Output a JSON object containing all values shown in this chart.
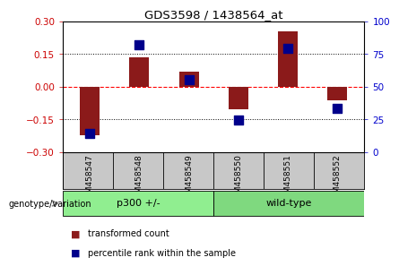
{
  "title": "GDS3598 / 1438564_at",
  "samples": [
    "GSM458547",
    "GSM458548",
    "GSM458549",
    "GSM458550",
    "GSM458551",
    "GSM458552"
  ],
  "transformed_count": [
    -0.225,
    0.135,
    0.07,
    -0.105,
    0.255,
    -0.065
  ],
  "percentile_rank": [
    14,
    82,
    55,
    24,
    79,
    33
  ],
  "groups": [
    {
      "label": "p300 +/-",
      "color": "#90EE90",
      "start": 0,
      "end": 2
    },
    {
      "label": "wild-type",
      "color": "#7FD97F",
      "start": 3,
      "end": 5
    }
  ],
  "bar_color": "#8B1A1A",
  "dot_color": "#00008B",
  "ylim_left": [
    -0.3,
    0.3
  ],
  "ylim_right": [
    0,
    100
  ],
  "yticks_left": [
    -0.3,
    -0.15,
    0,
    0.15,
    0.3
  ],
  "yticks_right": [
    0,
    25,
    50,
    75,
    100
  ],
  "dotted_lines": [
    -0.15,
    0.15
  ],
  "background_color": "#ffffff",
  "plot_bg": "#ffffff",
  "tick_label_color_left": "#CC0000",
  "tick_label_color_right": "#0000CC",
  "group_label": "genotype/variation",
  "label_bg": "#C8C8C8",
  "legend": [
    {
      "label": "transformed count",
      "color": "#8B1A1A"
    },
    {
      "label": "percentile rank within the sample",
      "color": "#00008B"
    }
  ]
}
